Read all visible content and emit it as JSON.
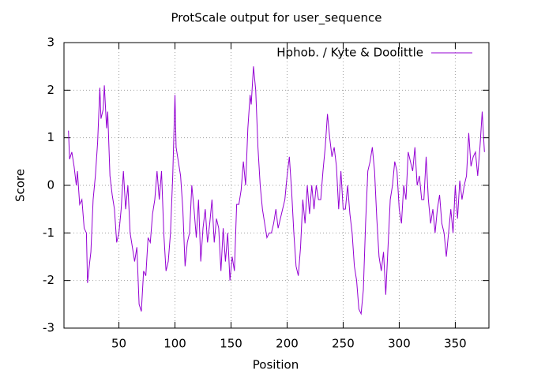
{
  "chart_data": {
    "type": "line",
    "title": "ProtScale output for user_sequence",
    "xlabel": "Position",
    "ylabel": "Score",
    "xlim": [
      1,
      380
    ],
    "ylim": [
      -3,
      3
    ],
    "xticks": [
      50,
      100,
      150,
      200,
      250,
      300,
      350
    ],
    "yticks": [
      -3,
      -2,
      -1,
      0,
      1,
      2,
      3
    ],
    "grid": true,
    "legend": "top-right",
    "x": [
      5,
      6,
      8,
      10,
      12,
      13,
      15,
      17,
      19,
      21,
      22,
      24,
      25,
      27,
      29,
      31,
      33,
      34,
      36,
      37,
      39,
      40,
      42,
      44,
      46,
      48,
      50,
      52,
      54,
      56,
      58,
      60,
      62,
      64,
      66,
      68,
      70,
      72,
      74,
      76,
      78,
      80,
      82,
      84,
      86,
      88,
      90,
      92,
      94,
      96,
      98,
      100,
      101,
      103,
      105,
      107,
      109,
      111,
      113,
      115,
      117,
      119,
      121,
      123,
      125,
      127,
      129,
      131,
      133,
      135,
      137,
      139,
      141,
      143,
      145,
      147,
      149,
      151,
      153,
      155,
      157,
      159,
      161,
      163,
      165,
      167,
      168,
      170,
      172,
      174,
      176,
      178,
      180,
      182,
      184,
      186,
      188,
      190,
      192,
      194,
      196,
      198,
      200,
      202,
      204,
      206,
      208,
      210,
      212,
      214,
      216,
      218,
      220,
      222,
      224,
      226,
      228,
      230,
      232,
      234,
      236,
      238,
      240,
      242,
      244,
      246,
      248,
      250,
      252,
      254,
      256,
      258,
      260,
      262,
      264,
      266,
      268,
      270,
      272,
      274,
      276,
      278,
      280,
      282,
      284,
      286,
      288,
      290,
      292,
      294,
      296,
      298,
      300,
      302,
      304,
      306,
      308,
      310,
      312,
      314,
      316,
      318,
      320,
      322,
      324,
      326,
      328,
      330,
      332,
      334,
      336,
      338,
      340,
      342,
      344,
      346,
      348,
      350,
      352,
      354,
      356,
      358,
      360,
      362,
      364,
      366,
      368,
      370,
      372,
      374,
      376
    ],
    "series": [
      {
        "name": "Hphob. / Kyte & Doolittle",
        "color": "#9400d3",
        "values": [
          1.15,
          0.55,
          0.7,
          0.4,
          0.0,
          0.3,
          -0.4,
          -0.3,
          -0.9,
          -1.0,
          -2.05,
          -1.6,
          -1.4,
          -0.3,
          0.2,
          0.9,
          2.05,
          1.4,
          1.6,
          2.1,
          1.2,
          1.55,
          0.2,
          -0.2,
          -0.5,
          -1.2,
          -1.0,
          -0.5,
          0.3,
          -0.5,
          0.0,
          -1.0,
          -1.3,
          -1.6,
          -1.3,
          -2.5,
          -2.65,
          -1.8,
          -1.9,
          -1.1,
          -1.2,
          -0.6,
          -0.3,
          0.3,
          -0.3,
          0.3,
          -1.0,
          -1.8,
          -1.6,
          -1.0,
          0.2,
          1.9,
          0.8,
          0.5,
          0.2,
          -0.5,
          -1.7,
          -1.2,
          -1.0,
          0.0,
          -0.5,
          -1.1,
          -0.3,
          -1.6,
          -0.9,
          -0.5,
          -1.2,
          -0.8,
          -0.3,
          -1.2,
          -0.7,
          -0.9,
          -1.8,
          -0.9,
          -1.6,
          -1.0,
          -2.0,
          -1.5,
          -1.8,
          -0.4,
          -0.4,
          -0.1,
          0.5,
          0.0,
          1.2,
          1.9,
          1.7,
          2.5,
          2.0,
          0.8,
          0.0,
          -0.5,
          -0.8,
          -1.1,
          -1.0,
          -1.0,
          -0.8,
          -0.5,
          -0.9,
          -0.7,
          -0.5,
          -0.3,
          0.2,
          0.6,
          -0.1,
          -1.0,
          -1.7,
          -1.9,
          -1.3,
          -0.3,
          -0.8,
          0.0,
          -0.6,
          0.0,
          -0.5,
          0.0,
          -0.3,
          -0.3,
          0.3,
          0.8,
          1.5,
          1.0,
          0.6,
          0.8,
          0.4,
          -0.5,
          0.3,
          -0.5,
          -0.5,
          0.0,
          -0.6,
          -1.0,
          -1.7,
          -2.0,
          -2.6,
          -2.7,
          -2.2,
          -0.8,
          0.3,
          0.5,
          0.8,
          0.3,
          -0.7,
          -1.5,
          -1.8,
          -1.4,
          -2.3,
          -1.3,
          -0.3,
          0.0,
          0.5,
          0.3,
          -0.5,
          -0.8,
          0.0,
          -0.3,
          0.7,
          0.5,
          0.3,
          0.8,
          0.0,
          0.2,
          -0.3,
          -0.3,
          0.6,
          -0.3,
          -0.8,
          -0.5,
          -1.0,
          -0.5,
          -0.2,
          -0.8,
          -1.0,
          -1.5,
          -1.0,
          -0.5,
          -1.0,
          0.0,
          -0.7,
          0.1,
          -0.3,
          0.0,
          0.2,
          1.1,
          0.4,
          0.6,
          0.7,
          0.2,
          0.8,
          1.55,
          0.7
        ]
      }
    ]
  }
}
